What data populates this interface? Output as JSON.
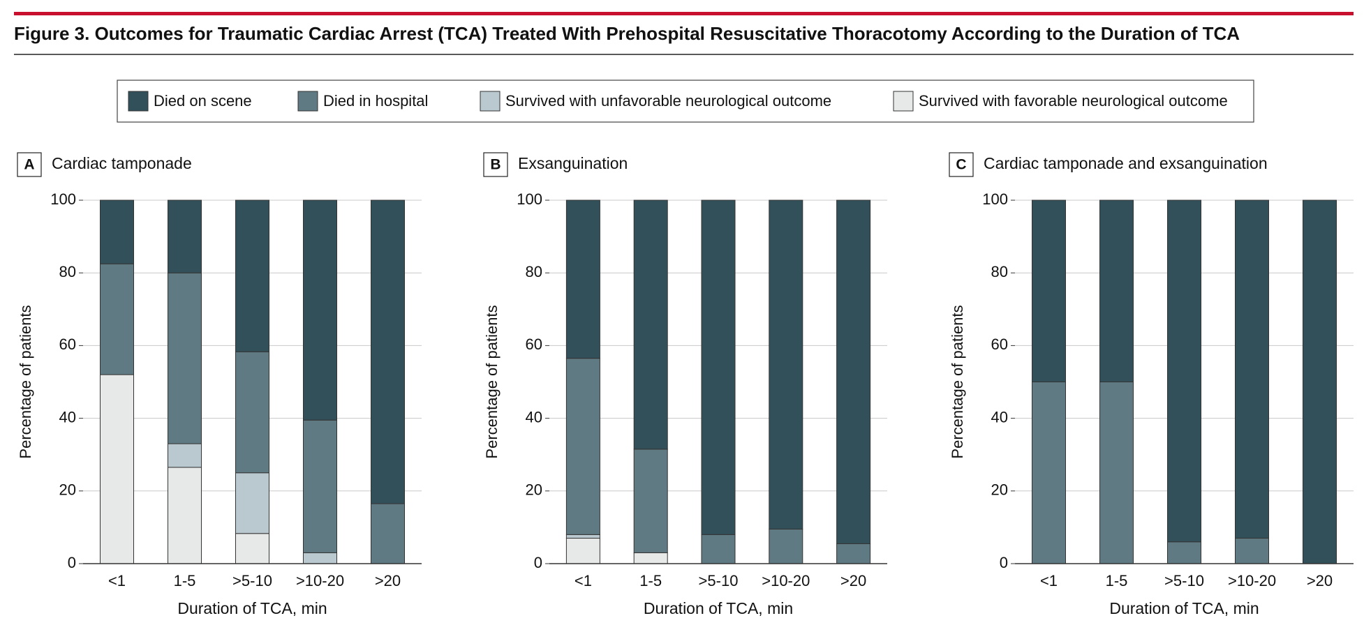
{
  "title": "Figure 3. Outcomes for Traumatic Cardiac Arrest (TCA) Treated With Prehospital Resuscitative Thoracotomy According to the Duration of TCA",
  "chart_data": [
    {
      "type": "bar",
      "stacked": true,
      "panel": "A",
      "title": "Cardiac tamponade",
      "x_label": "Duration of TCA, min",
      "y_label": "Percentage of patients",
      "categories": [
        "<1",
        "1-5",
        ">5-10",
        ">10-20",
        ">20"
      ],
      "series": [
        {
          "name": "Survived with favorable neurological outcome",
          "color": "#e6e9e8",
          "values": [
            52,
            26.5,
            8.3,
            0,
            0
          ]
        },
        {
          "name": "Survived with unfavorable neurological outcome",
          "color": "#b9c9cf",
          "values": [
            0,
            6.5,
            16.7,
            3,
            0
          ]
        },
        {
          "name": "Died in hospital",
          "color": "#5f7a82",
          "values": [
            30.5,
            47,
            33.3,
            36.5,
            16.5
          ]
        },
        {
          "name": "Died on scene",
          "color": "#32505a",
          "values": [
            17.5,
            20,
            41.7,
            60.5,
            83.5
          ]
        }
      ],
      "ylim": [
        0,
        100
      ],
      "yticks": [
        0,
        20,
        40,
        60,
        80,
        100
      ],
      "grid": true
    },
    {
      "type": "bar",
      "stacked": true,
      "panel": "B",
      "title": "Exsanguination",
      "x_label": "Duration of TCA, min",
      "y_label": "Percentage of patients",
      "categories": [
        "<1",
        "1-5",
        ">5-10",
        ">10-20",
        ">20"
      ],
      "series": [
        {
          "name": "Survived with favorable neurological outcome",
          "color": "#e6e9e8",
          "values": [
            7,
            3,
            0,
            0,
            0
          ]
        },
        {
          "name": "Survived with unfavorable neurological outcome",
          "color": "#b9c9cf",
          "values": [
            1,
            0,
            0,
            0,
            0
          ]
        },
        {
          "name": "Died in hospital",
          "color": "#5f7a82",
          "values": [
            48.5,
            28.5,
            8,
            9.5,
            5.5
          ]
        },
        {
          "name": "Died on scene",
          "color": "#32505a",
          "values": [
            43.5,
            68.5,
            92,
            90.5,
            94.5
          ]
        }
      ],
      "ylim": [
        0,
        100
      ],
      "yticks": [
        0,
        20,
        40,
        60,
        80,
        100
      ],
      "grid": true
    },
    {
      "type": "bar",
      "stacked": true,
      "panel": "C",
      "title": "Cardiac tamponade and exsanguination",
      "x_label": "Duration of TCA, min",
      "y_label": "Percentage of patients",
      "categories": [
        "<1",
        "1-5",
        ">5-10",
        ">10-20",
        ">20"
      ],
      "series": [
        {
          "name": "Survived with favorable neurological outcome",
          "color": "#e6e9e8",
          "values": [
            0,
            0,
            0,
            0,
            0
          ]
        },
        {
          "name": "Survived with unfavorable neurological outcome",
          "color": "#b9c9cf",
          "values": [
            0,
            0,
            0,
            0,
            0
          ]
        },
        {
          "name": "Died in hospital",
          "color": "#5f7a82",
          "values": [
            50,
            50,
            6,
            7,
            0
          ]
        },
        {
          "name": "Died on scene",
          "color": "#32505a",
          "values": [
            50,
            50,
            94,
            93,
            100
          ]
        }
      ],
      "ylim": [
        0,
        100
      ],
      "yticks": [
        0,
        20,
        40,
        60,
        80,
        100
      ],
      "grid": true
    }
  ]
}
